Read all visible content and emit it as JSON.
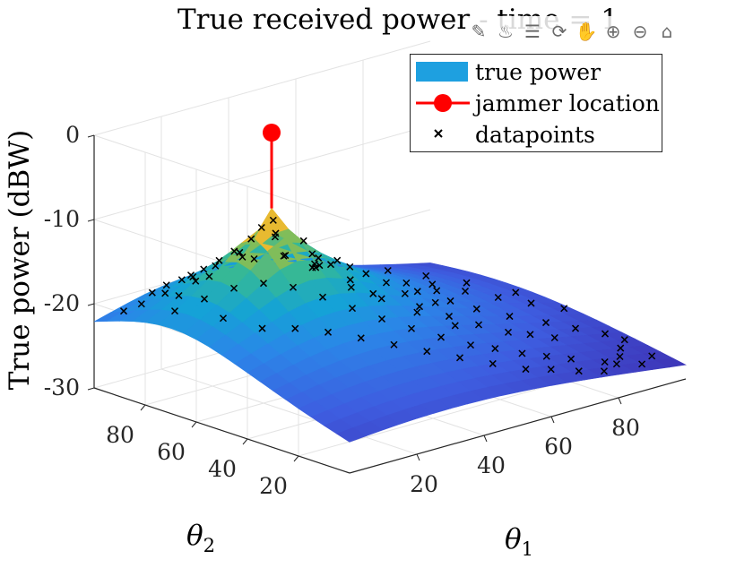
{
  "title": "True received power - time = 1",
  "toolbar": {
    "icons": [
      "data-tips-icon",
      "brush-icon",
      "legend-icon",
      "rotate-icon",
      "pan-icon",
      "zoom-in-icon",
      "zoom-out-icon",
      "home-icon"
    ],
    "glyphs": [
      "✎",
      "♨",
      "☰",
      "⟳",
      "✋",
      "⊕",
      "⊖",
      "⌂"
    ]
  },
  "legend": {
    "items": [
      "true power",
      "jammer location",
      "datapoints"
    ]
  },
  "colors": {
    "jammer": "#ff0000",
    "legend_patch": "#1ea0e0",
    "marker": "#000000"
  },
  "chart_data": {
    "type": "surface3d",
    "title": "True received power - time = 1",
    "xlabel": "θ1",
    "ylabel": "θ2",
    "zlabel": "True power (dBW)",
    "xlim": [
      0,
      100
    ],
    "ylim": [
      0,
      100
    ],
    "zlim": [
      -30,
      0
    ],
    "xticks": [
      20,
      40,
      60,
      80
    ],
    "yticks": [
      20,
      40,
      60,
      80
    ],
    "zticks": [
      0,
      -10,
      -20,
      -30
    ],
    "xtick_labels": [
      "20",
      "40",
      "60",
      "80"
    ],
    "ytick_labels": [
      "20",
      "40",
      "60",
      "80"
    ],
    "ztick_labels": [
      "0",
      "-10",
      "-20",
      "-30"
    ],
    "grid": true,
    "colormap": "parula",
    "legend_position": "top-right",
    "jammer_location": {
      "x": 30,
      "y": 70,
      "z": 0
    },
    "surface_peak": {
      "x": 30,
      "y": 70,
      "z": -9
    },
    "series": [
      {
        "name": "true power",
        "kind": "surface"
      },
      {
        "name": "jammer location",
        "kind": "stem"
      },
      {
        "name": "datapoints",
        "kind": "scatter3"
      }
    ],
    "datapoints": [
      [
        5,
        95,
        -26
      ],
      [
        8,
        92,
        -25
      ],
      [
        12,
        88,
        -25
      ],
      [
        15,
        97,
        -26
      ],
      [
        10,
        80,
        -27
      ],
      [
        20,
        92,
        -22
      ],
      [
        18,
        85,
        -24
      ],
      [
        25,
        90,
        -18
      ],
      [
        22,
        80,
        -21
      ],
      [
        28,
        82,
        -18
      ],
      [
        30,
        78,
        -16
      ],
      [
        32,
        72,
        -15
      ],
      [
        35,
        75,
        -14
      ],
      [
        27,
        70,
        -14
      ],
      [
        38,
        68,
        -12
      ],
      [
        36,
        62,
        -10
      ],
      [
        33,
        58,
        -10
      ],
      [
        28,
        62,
        -11
      ],
      [
        40,
        60,
        -11
      ],
      [
        42,
        55,
        -12
      ],
      [
        45,
        50,
        -13
      ],
      [
        48,
        68,
        -16
      ],
      [
        52,
        62,
        -18
      ],
      [
        55,
        58,
        -18
      ],
      [
        50,
        78,
        -20
      ],
      [
        45,
        85,
        -22
      ],
      [
        40,
        90,
        -24
      ],
      [
        35,
        88,
        -26
      ],
      [
        30,
        92,
        -27
      ],
      [
        25,
        95,
        -28
      ],
      [
        20,
        98,
        -29
      ],
      [
        15,
        80,
        -28
      ],
      [
        55,
        45,
        -14
      ],
      [
        60,
        40,
        -15
      ],
      [
        65,
        35,
        -17
      ],
      [
        70,
        30,
        -18
      ],
      [
        75,
        28,
        -19
      ],
      [
        80,
        25,
        -20
      ],
      [
        62,
        55,
        -19
      ],
      [
        68,
        50,
        -20
      ],
      [
        72,
        45,
        -21
      ],
      [
        78,
        40,
        -22
      ],
      [
        85,
        35,
        -23
      ],
      [
        90,
        30,
        -24
      ],
      [
        95,
        25,
        -25
      ],
      [
        97,
        20,
        -26
      ],
      [
        92,
        15,
        -27
      ],
      [
        88,
        10,
        -28
      ],
      [
        82,
        8,
        -28
      ],
      [
        75,
        12,
        -27
      ],
      [
        70,
        15,
        -26
      ],
      [
        65,
        18,
        -25
      ],
      [
        60,
        22,
        -24
      ],
      [
        55,
        25,
        -23
      ],
      [
        50,
        30,
        -22
      ],
      [
        45,
        35,
        -21
      ],
      [
        40,
        40,
        -20
      ],
      [
        35,
        45,
        -19
      ],
      [
        30,
        50,
        -18
      ],
      [
        25,
        55,
        -19
      ],
      [
        20,
        60,
        -21
      ],
      [
        15,
        65,
        -23
      ],
      [
        10,
        70,
        -25
      ],
      [
        5,
        75,
        -27
      ],
      [
        8,
        60,
        -27
      ],
      [
        12,
        50,
        -27
      ],
      [
        18,
        45,
        -26
      ],
      [
        24,
        40,
        -25
      ],
      [
        30,
        35,
        -25
      ],
      [
        36,
        30,
        -26
      ],
      [
        42,
        25,
        -27
      ],
      [
        48,
        20,
        -27
      ],
      [
        54,
        15,
        -28
      ],
      [
        60,
        10,
        -28
      ],
      [
        66,
        8,
        -29
      ],
      [
        72,
        5,
        -29
      ],
      [
        78,
        3,
        -30
      ],
      [
        84,
        6,
        -30
      ],
      [
        90,
        4,
        -30
      ],
      [
        96,
        8,
        -29
      ],
      [
        58,
        35,
        -23
      ],
      [
        52,
        42,
        -22
      ],
      [
        46,
        48,
        -22
      ],
      [
        40,
        52,
        -21
      ],
      [
        34,
        58,
        -21
      ],
      [
        28,
        66,
        -20
      ],
      [
        22,
        72,
        -21
      ],
      [
        16,
        76,
        -23
      ],
      [
        62,
        48,
        -23
      ],
      [
        56,
        52,
        -23
      ],
      [
        64,
        62,
        -22
      ],
      [
        70,
        58,
        -22
      ],
      [
        74,
        65,
        -23
      ],
      [
        80,
        60,
        -24
      ],
      [
        86,
        55,
        -25
      ],
      [
        92,
        50,
        -25
      ],
      [
        98,
        45,
        -26
      ],
      [
        95,
        60,
        -27
      ],
      [
        88,
        70,
        -26
      ],
      [
        82,
        78,
        -26
      ],
      [
        76,
        85,
        -27
      ],
      [
        70,
        92,
        -27
      ],
      [
        64,
        96,
        -28
      ],
      [
        58,
        90,
        -28
      ]
    ]
  }
}
